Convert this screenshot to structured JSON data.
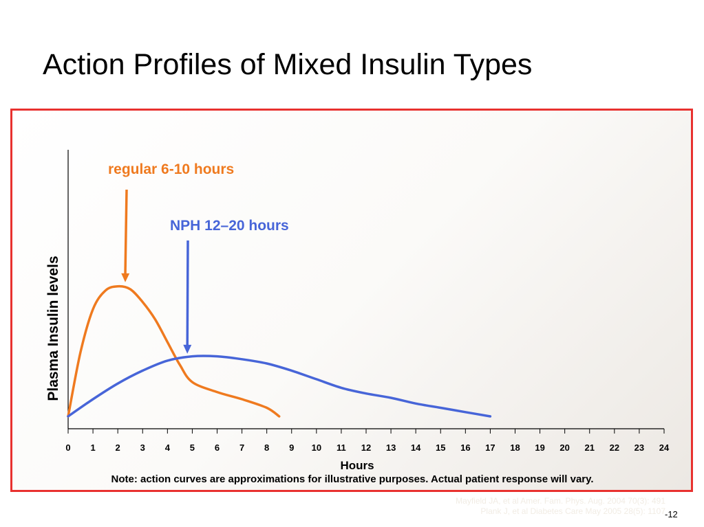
{
  "slide": {
    "title": "Action Profiles of Mixed Insulin Types",
    "note": "Note: action curves are approximations for illustrative purposes.  Actual patient response will vary.",
    "source_lines": [
      "Mayfield JA,  et al  Amer. Fam. Phys.  Aug. 2004  70(3): 491",
      "Plank  J,  et al  Diabetes Care  May 2005  28(5): 1107"
    ],
    "page_number": "-12"
  },
  "chart_data": {
    "type": "line",
    "title": "",
    "xlabel": "Hours",
    "ylabel": "Plasma Insulin levels",
    "xlim": [
      0,
      24
    ],
    "ylim": [
      0,
      10
    ],
    "xticks": [
      0,
      1,
      2,
      3,
      4,
      5,
      6,
      7,
      8,
      9,
      10,
      11,
      12,
      13,
      14,
      15,
      16,
      17,
      18,
      19,
      20,
      21,
      22,
      23,
      24
    ],
    "grid": false,
    "legend": "none",
    "series": [
      {
        "name": "regular 6-10 hours",
        "color": "#ef7a1f",
        "x": [
          0,
          0.5,
          1,
          1.5,
          2,
          2.5,
          3,
          3.5,
          4,
          4.5,
          5,
          6,
          7,
          8,
          8.5
        ],
        "y": [
          0,
          4.5,
          7.5,
          8.8,
          9.1,
          8.9,
          8.0,
          6.8,
          5.2,
          3.6,
          2.4,
          1.7,
          1.2,
          0.6,
          0
        ]
      },
      {
        "name": "NPH 12–20 hours",
        "color": "#4765d8",
        "x": [
          0,
          1,
          2,
          3,
          4,
          5,
          6,
          7,
          8,
          9,
          10,
          11,
          12,
          13,
          14,
          15,
          16,
          17
        ],
        "y": [
          0,
          1.2,
          2.3,
          3.2,
          3.9,
          4.2,
          4.2,
          4.0,
          3.7,
          3.2,
          2.6,
          2.0,
          1.6,
          1.3,
          0.9,
          0.6,
          0.3,
          0
        ]
      }
    ],
    "annotations": [
      {
        "text": "regular 6-10 hours",
        "color": "#ef7a1f",
        "points_to": {
          "x": 2.3,
          "y": 9.0
        }
      },
      {
        "text": "NPH 12–20 hours",
        "color": "#4765d8",
        "points_to": {
          "x": 4.8,
          "y": 4.0
        }
      }
    ]
  }
}
